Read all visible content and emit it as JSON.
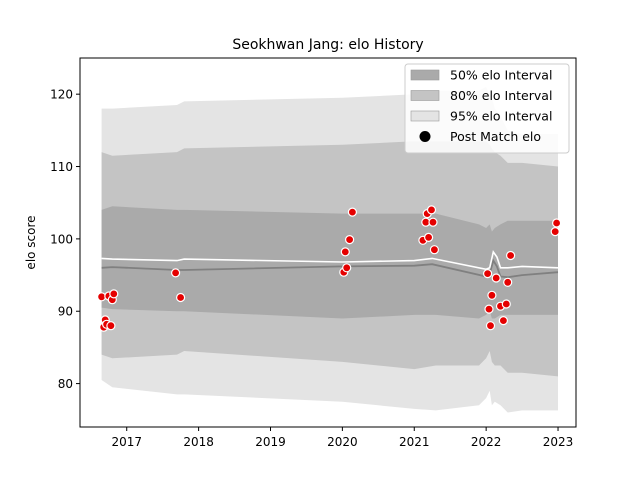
{
  "chart_data": {
    "type": "line",
    "title": "Seokhwan Jang: elo History",
    "xlabel": "",
    "ylabel": "elo score",
    "xlim": [
      2016.35,
      2023.25
    ],
    "ylim": [
      74,
      125
    ],
    "x_ticks": [
      2017,
      2018,
      2019,
      2020,
      2021,
      2022,
      2023
    ],
    "x_tick_labels": [
      "2017",
      "2018",
      "2019",
      "2020",
      "2021",
      "2022",
      "2023"
    ],
    "y_ticks": [
      80,
      90,
      100,
      110,
      120
    ],
    "y_tick_labels": [
      "80",
      "90",
      "100",
      "110",
      "120"
    ],
    "grid": false,
    "legend": {
      "placement": "top-right",
      "entries": [
        {
          "label": "50% elo Interval",
          "kind": "band",
          "color": "#aaaaaa"
        },
        {
          "label": "80% elo Interval",
          "kind": "band",
          "color": "#c4c4c4"
        },
        {
          "label": "95% elo Interval",
          "kind": "band",
          "color": "#e4e4e4"
        },
        {
          "label": "Post Match elo",
          "kind": "marker",
          "color": "#000000"
        }
      ]
    },
    "colors": {
      "band95": "#e4e4e4",
      "band80": "#c4c4c4",
      "band50": "#aaaaaa",
      "median_line": "#808080",
      "mean_line": "#ffffff",
      "point_fill": "#e50000",
      "point_edge": "#ffffff"
    },
    "series": [
      {
        "kind": "band",
        "name": "95% elo Interval",
        "x": [
          2016.65,
          2016.8,
          2017.7,
          2017.8,
          2020.0,
          2021.0,
          2021.3,
          2021.9,
          2022.0,
          2022.05,
          2022.08,
          2022.12,
          2022.2,
          2022.3,
          2022.5,
          2023.0
        ],
        "low": [
          80.5,
          79.5,
          78.5,
          78.5,
          77.5,
          76.5,
          76.3,
          77.0,
          78.0,
          79.0,
          77.0,
          77.5,
          77.0,
          76.0,
          76.3,
          76.3
        ],
        "high": [
          118.0,
          118.0,
          118.5,
          119.0,
          119.5,
          120.0,
          120.5,
          120.5,
          121.0,
          120.0,
          119.5,
          118.0,
          117.0,
          115.0,
          114.5,
          114.5
        ]
      },
      {
        "kind": "band",
        "name": "80% elo Interval",
        "x": [
          2016.65,
          2016.8,
          2017.7,
          2017.8,
          2020.0,
          2021.0,
          2021.3,
          2021.9,
          2022.0,
          2022.05,
          2022.08,
          2022.12,
          2022.2,
          2022.3,
          2022.5,
          2023.0
        ],
        "low": [
          84.0,
          83.5,
          84.0,
          84.5,
          83.0,
          82.0,
          82.5,
          82.5,
          83.5,
          84.5,
          83.0,
          82.5,
          82.5,
          81.5,
          81.5,
          81.0
        ],
        "high": [
          112.0,
          111.5,
          112.0,
          112.5,
          113.0,
          113.5,
          113.5,
          113.5,
          113.5,
          113.0,
          112.5,
          112.0,
          111.5,
          110.5,
          110.5,
          110.0
        ]
      },
      {
        "kind": "band",
        "name": "50% elo Interval",
        "x": [
          2016.65,
          2016.8,
          2017.7,
          2017.8,
          2020.0,
          2021.0,
          2021.3,
          2021.9,
          2022.0,
          2022.05,
          2022.08,
          2022.12,
          2022.2,
          2022.3,
          2022.5,
          2023.0
        ],
        "low": [
          90.5,
          90.3,
          90.0,
          90.0,
          89.0,
          89.5,
          89.5,
          89.0,
          89.5,
          90.0,
          89.0,
          89.0,
          89.5,
          89.5,
          89.5,
          89.5
        ],
        "high": [
          104.0,
          104.5,
          104.0,
          104.0,
          103.5,
          103.5,
          103.5,
          102.0,
          101.5,
          102.0,
          101.0,
          101.5,
          102.0,
          102.5,
          102.5,
          102.5
        ]
      },
      {
        "kind": "line",
        "name": "median",
        "x": [
          2016.65,
          2016.8,
          2017.7,
          2017.8,
          2020.0,
          2021.0,
          2021.25,
          2022.0,
          2022.05,
          2022.1,
          2022.15,
          2022.2,
          2022.3,
          2022.5,
          2023.0
        ],
        "y": [
          96.0,
          96.1,
          95.7,
          95.7,
          96.2,
          96.3,
          96.5,
          94.8,
          95.2,
          97.0,
          96.2,
          94.8,
          94.7,
          95.0,
          95.4
        ]
      },
      {
        "kind": "line",
        "name": "mean",
        "x": [
          2016.65,
          2016.8,
          2017.7,
          2017.8,
          2020.0,
          2021.0,
          2021.25,
          2022.0,
          2022.05,
          2022.1,
          2022.15,
          2022.2,
          2022.3,
          2022.5,
          2023.0
        ],
        "y": [
          97.3,
          97.2,
          97.0,
          97.2,
          96.8,
          97.0,
          97.3,
          95.8,
          96.0,
          98.2,
          97.5,
          96.0,
          96.0,
          96.2,
          96.0
        ]
      },
      {
        "kind": "scatter",
        "name": "Post Match elo",
        "x": [
          2016.65,
          2016.68,
          2016.7,
          2016.72,
          2016.75,
          2016.78,
          2016.8,
          2016.82,
          2017.68,
          2017.75,
          2020.02,
          2020.04,
          2020.06,
          2020.1,
          2020.14,
          2021.12,
          2021.16,
          2021.18,
          2021.2,
          2021.24,
          2021.26,
          2021.28,
          2022.02,
          2022.04,
          2022.06,
          2022.08,
          2022.14,
          2022.2,
          2022.24,
          2022.28,
          2022.3,
          2022.34,
          2022.96,
          2022.98
        ],
        "y": [
          92.0,
          87.8,
          88.8,
          88.2,
          92.1,
          88.0,
          91.6,
          92.4,
          95.3,
          91.9,
          95.4,
          98.2,
          96.0,
          99.9,
          103.7,
          99.8,
          102.3,
          103.5,
          100.2,
          104.0,
          102.3,
          98.5,
          95.2,
          90.3,
          88.0,
          92.2,
          94.6,
          90.7,
          88.7,
          91.0,
          94.0,
          97.7,
          101.0,
          102.2
        ]
      }
    ]
  }
}
